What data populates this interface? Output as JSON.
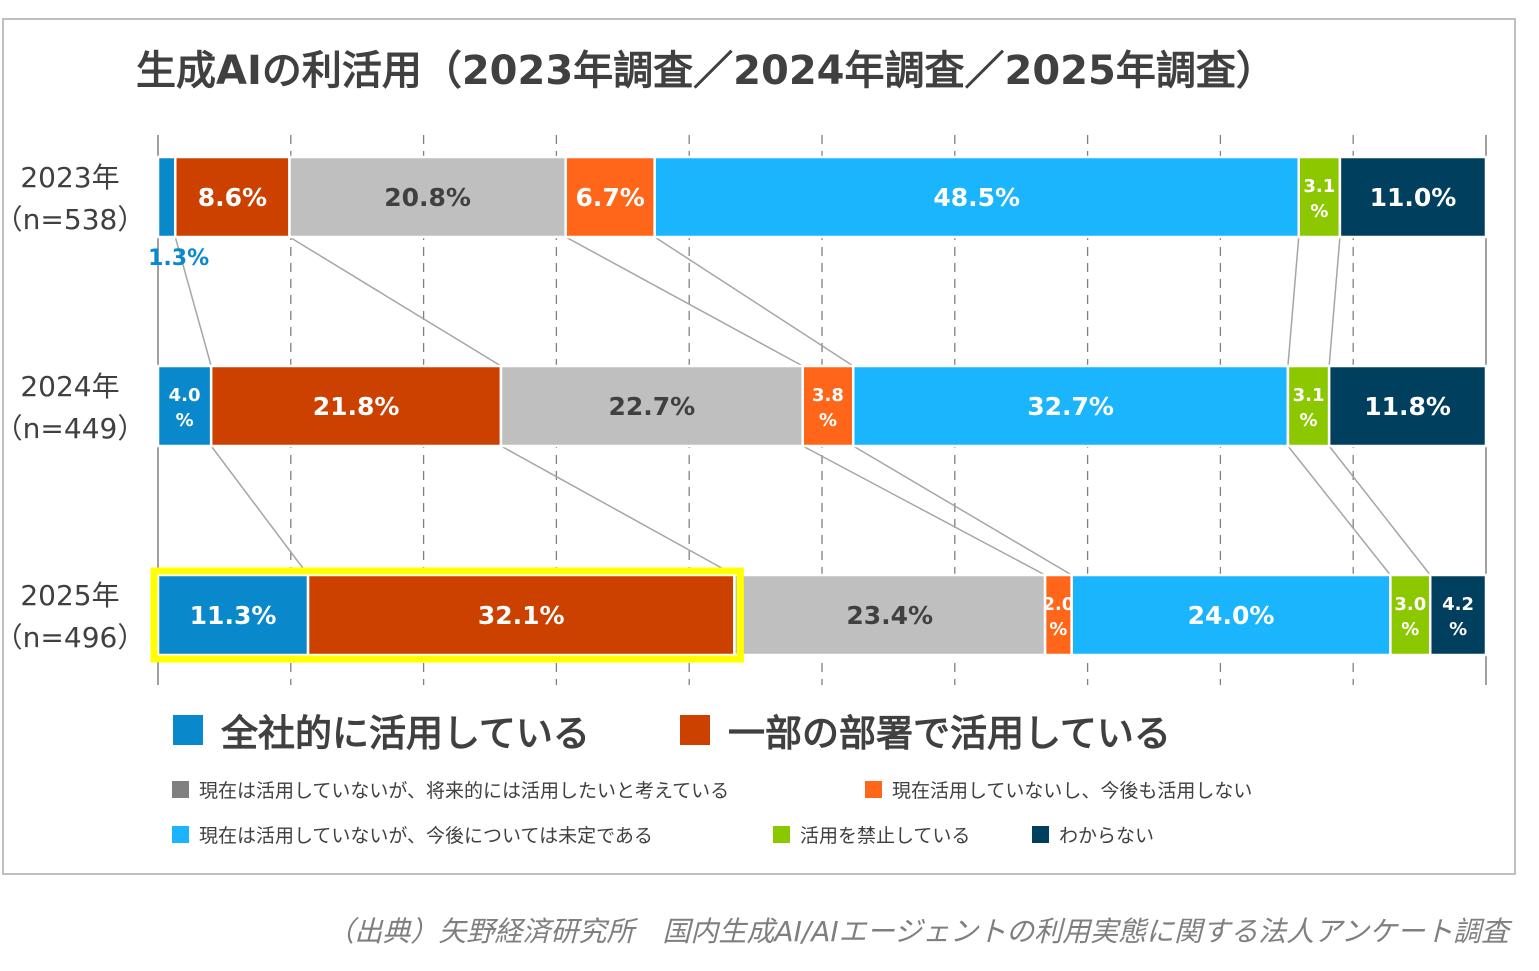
{
  "chart_data": {
    "type": "bar",
    "orientation": "horizontal-stacked-100",
    "title": "生成AIの利活用（2023年調査／2024年調査／2025年調査）",
    "categories": [
      {
        "year": "2023年",
        "n": "（n=538）"
      },
      {
        "year": "2024年",
        "n": "（n=449）"
      },
      {
        "year": "2025年",
        "n": "（n=496）"
      }
    ],
    "series": [
      {
        "name": "全社的に活用している",
        "color": "#0A88CC",
        "values": [
          1.3,
          4.0,
          11.3
        ]
      },
      {
        "name": "一部の部署で活用している",
        "color": "#CC4000",
        "values": [
          8.6,
          21.8,
          32.1
        ]
      },
      {
        "name": "現在は活用していないが、将来的には活用したいと考えている",
        "color": "#BFBFBF",
        "values": [
          20.8,
          22.7,
          23.4
        ]
      },
      {
        "name": "現在活用していないし、今後も活用しない",
        "color": "#FF661A",
        "values": [
          6.7,
          3.8,
          2.0
        ]
      },
      {
        "name": "現在は活用していないが、今後については未定である",
        "color": "#1AB5FC",
        "values": [
          48.5,
          32.7,
          24.0
        ]
      },
      {
        "name": "活用を禁止している",
        "color": "#8CC800",
        "values": [
          3.1,
          3.1,
          3.0
        ]
      },
      {
        "name": "わからない",
        "color": "#003F5E",
        "values": [
          11.0,
          11.8,
          4.2
        ]
      }
    ],
    "xlim": [
      0,
      100
    ],
    "grid": true,
    "legend": "bottom",
    "highlight": {
      "category": "2025年",
      "series": [
        "全社的に活用している",
        "一部の部署で活用している"
      ],
      "color": "#FFFF00"
    }
  },
  "source": "（出典）矢野経済研究所　国内生成AI/AIエージェントの利用実態に関する法人アンケート調査"
}
